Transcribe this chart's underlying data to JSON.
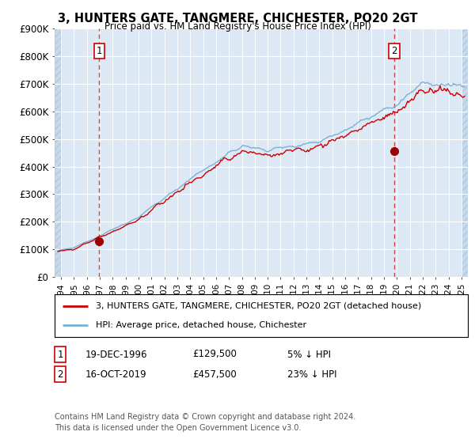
{
  "title": "3, HUNTERS GATE, TANGMERE, CHICHESTER, PO20 2GT",
  "subtitle": "Price paid vs. HM Land Registry's House Price Index (HPI)",
  "bg_color": "#ffffff",
  "plot_bg_color": "#dce9f5",
  "hatch_color": "#c8d8ea",
  "grid_color": "#ffffff",
  "ylim": [
    0,
    900000
  ],
  "yticks": [
    0,
    100000,
    200000,
    300000,
    400000,
    500000,
    600000,
    700000,
    800000,
    900000
  ],
  "ytick_labels": [
    "£0",
    "£100K",
    "£200K",
    "£300K",
    "£400K",
    "£500K",
    "£600K",
    "£700K",
    "£800K",
    "£900K"
  ],
  "sale1_year": 1996.96,
  "sale1_price": 129500,
  "sale1_label": "1",
  "sale1_date": "19-DEC-1996",
  "sale1_pct": "5% ↓ HPI",
  "sale2_year": 2019.79,
  "sale2_price": 457500,
  "sale2_label": "2",
  "sale2_date": "16-OCT-2019",
  "sale2_pct": "23% ↓ HPI",
  "marker_color": "#990000",
  "vline_color": "#cc4444",
  "hpi_color": "#7ab0d4",
  "price_color": "#cc0000",
  "legend1_text": "3, HUNTERS GATE, TANGMERE, CHICHESTER, PO20 2GT (detached house)",
  "legend2_text": "HPI: Average price, detached house, Chichester",
  "footer": "Contains HM Land Registry data © Crown copyright and database right 2024.\nThis data is licensed under the Open Government Licence v3.0.",
  "xmin": 1993.5,
  "xmax": 2025.5,
  "note1_box_color": "#cc0000",
  "note2_box_color": "#cc0000",
  "sale1_price_str": "£129,500",
  "sale2_price_str": "£457,500"
}
